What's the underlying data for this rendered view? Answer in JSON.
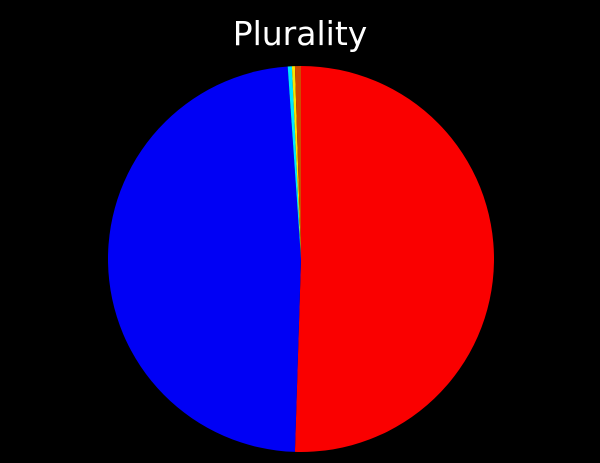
{
  "chart_data": {
    "type": "pie",
    "title": "Plurality",
    "slices": [
      {
        "value": 50.5,
        "color": "#fa0000"
      },
      {
        "value": 48.4,
        "color": "#0000f5"
      },
      {
        "value": 0.35,
        "color": "#00e6ff"
      },
      {
        "value": 0.25,
        "color": "#f5e600"
      },
      {
        "value": 0.5,
        "color": "#d04a00"
      }
    ],
    "start": "top",
    "direction": "clockwise",
    "legend": "none"
  }
}
